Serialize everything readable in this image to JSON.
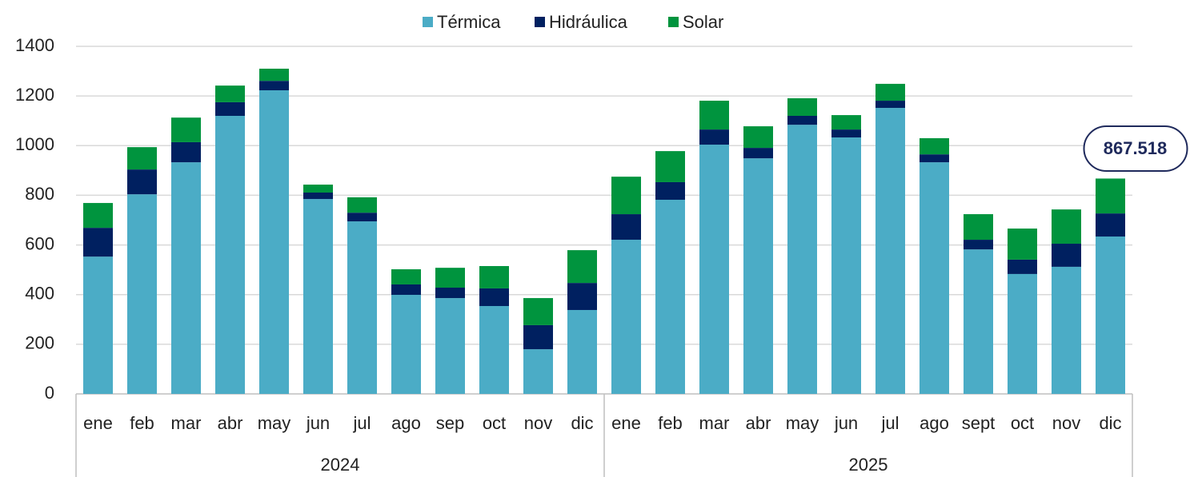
{
  "chart_data": {
    "type": "stacked_bar",
    "categories": [
      "ene",
      "feb",
      "mar",
      "abr",
      "may",
      "jun",
      "jul",
      "ago",
      "sep",
      "oct",
      "nov",
      "dic",
      "ene",
      "feb",
      "mar",
      "abr",
      "may",
      "jun",
      "jul",
      "ago",
      "sept",
      "oct",
      "nov",
      "dic"
    ],
    "years": [
      "2024",
      "2025"
    ],
    "series": [
      {
        "name": "Térmica",
        "color": "#4bacc6",
        "values": [
          553,
          804,
          933,
          1120,
          1223,
          785,
          695,
          399,
          386,
          354,
          180,
          338,
          621,
          782,
          1004,
          949,
          1084,
          1033,
          1152,
          933,
          582,
          483,
          512,
          634
        ]
      },
      {
        "name": "Hidráulica",
        "color": "#002060",
        "values": [
          116,
          100,
          81,
          55,
          38,
          26,
          35,
          42,
          42,
          71,
          97,
          109,
          103,
          71,
          61,
          42,
          36,
          32,
          29,
          32,
          39,
          58,
          93,
          93
        ]
      },
      {
        "name": "Solar",
        "color": "#00943e",
        "values": [
          100,
          90,
          99,
          67,
          49,
          32,
          62,
          61,
          80,
          90,
          109,
          132,
          151,
          125,
          116,
          87,
          71,
          58,
          68,
          65,
          103,
          125,
          138,
          140.5
        ]
      }
    ],
    "annotation": "867.518",
    "ylim": [
      0,
      1400
    ],
    "yticks": [
      0,
      200,
      400,
      600,
      800,
      1000,
      1200,
      1400
    ],
    "grid": true,
    "legend": "top"
  }
}
